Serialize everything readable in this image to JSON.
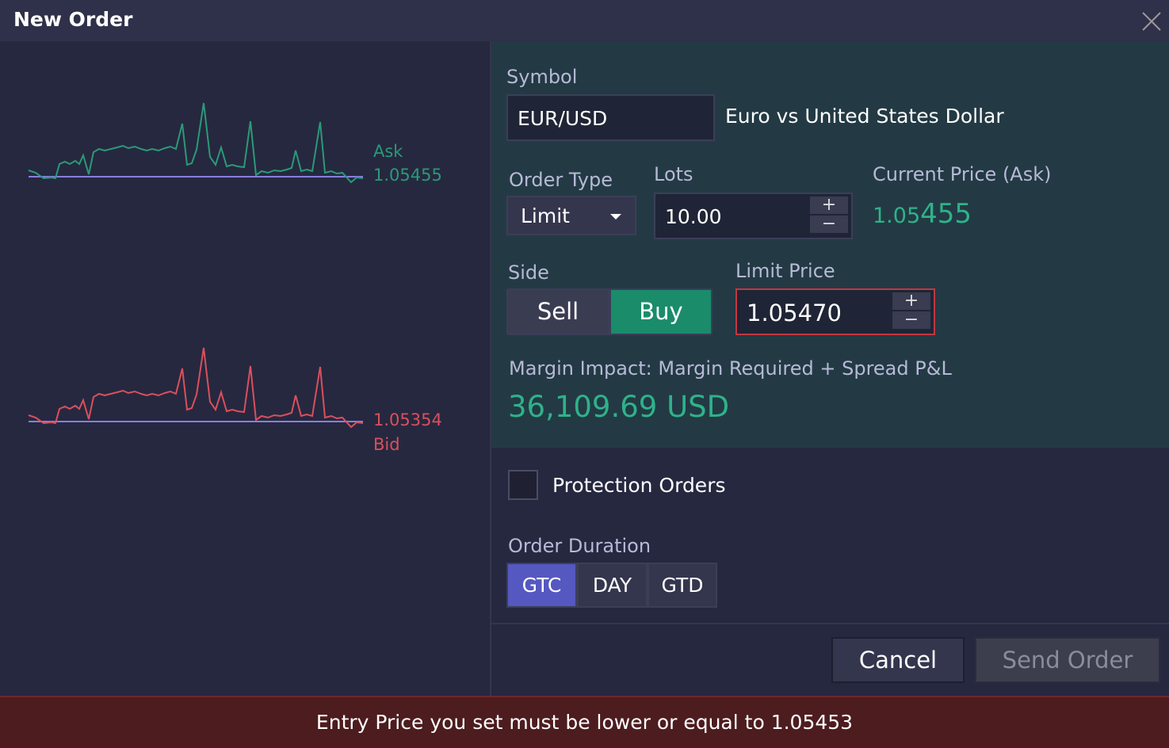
{
  "header": {
    "title": "New Order"
  },
  "chart": {
    "ask_label": "Ask",
    "ask_value": "1.05455",
    "bid_value": "1.05354",
    "bid_label": "Bid"
  },
  "form": {
    "symbol_label": "Symbol",
    "symbol": "EUR/USD",
    "symbol_name": "Euro vs United States Dollar",
    "order_type_label": "Order Type",
    "order_type": "Limit",
    "lots_label": "Lots",
    "lots": "10.00",
    "current_price_label": "Current Price (Ask)",
    "current_price": {
      "main": "1.05",
      "pips": "455"
    },
    "side_label": "Side",
    "sides": [
      "Sell",
      "Buy"
    ],
    "limit_price_label": "Limit Price",
    "limit_price": "1.05470",
    "margin_label": "Margin Impact: Margin Required + Spread P&L",
    "margin_value": "36,109.69 USD",
    "protection_orders": "Protection Orders",
    "duration_label": "Order Duration",
    "durations": [
      "GTC",
      "DAY",
      "GTD"
    ]
  },
  "buttons": {
    "cancel": "Cancel",
    "send": "Send Order"
  },
  "error": "Entry Price you set must be lower or equal to 1.05453"
}
